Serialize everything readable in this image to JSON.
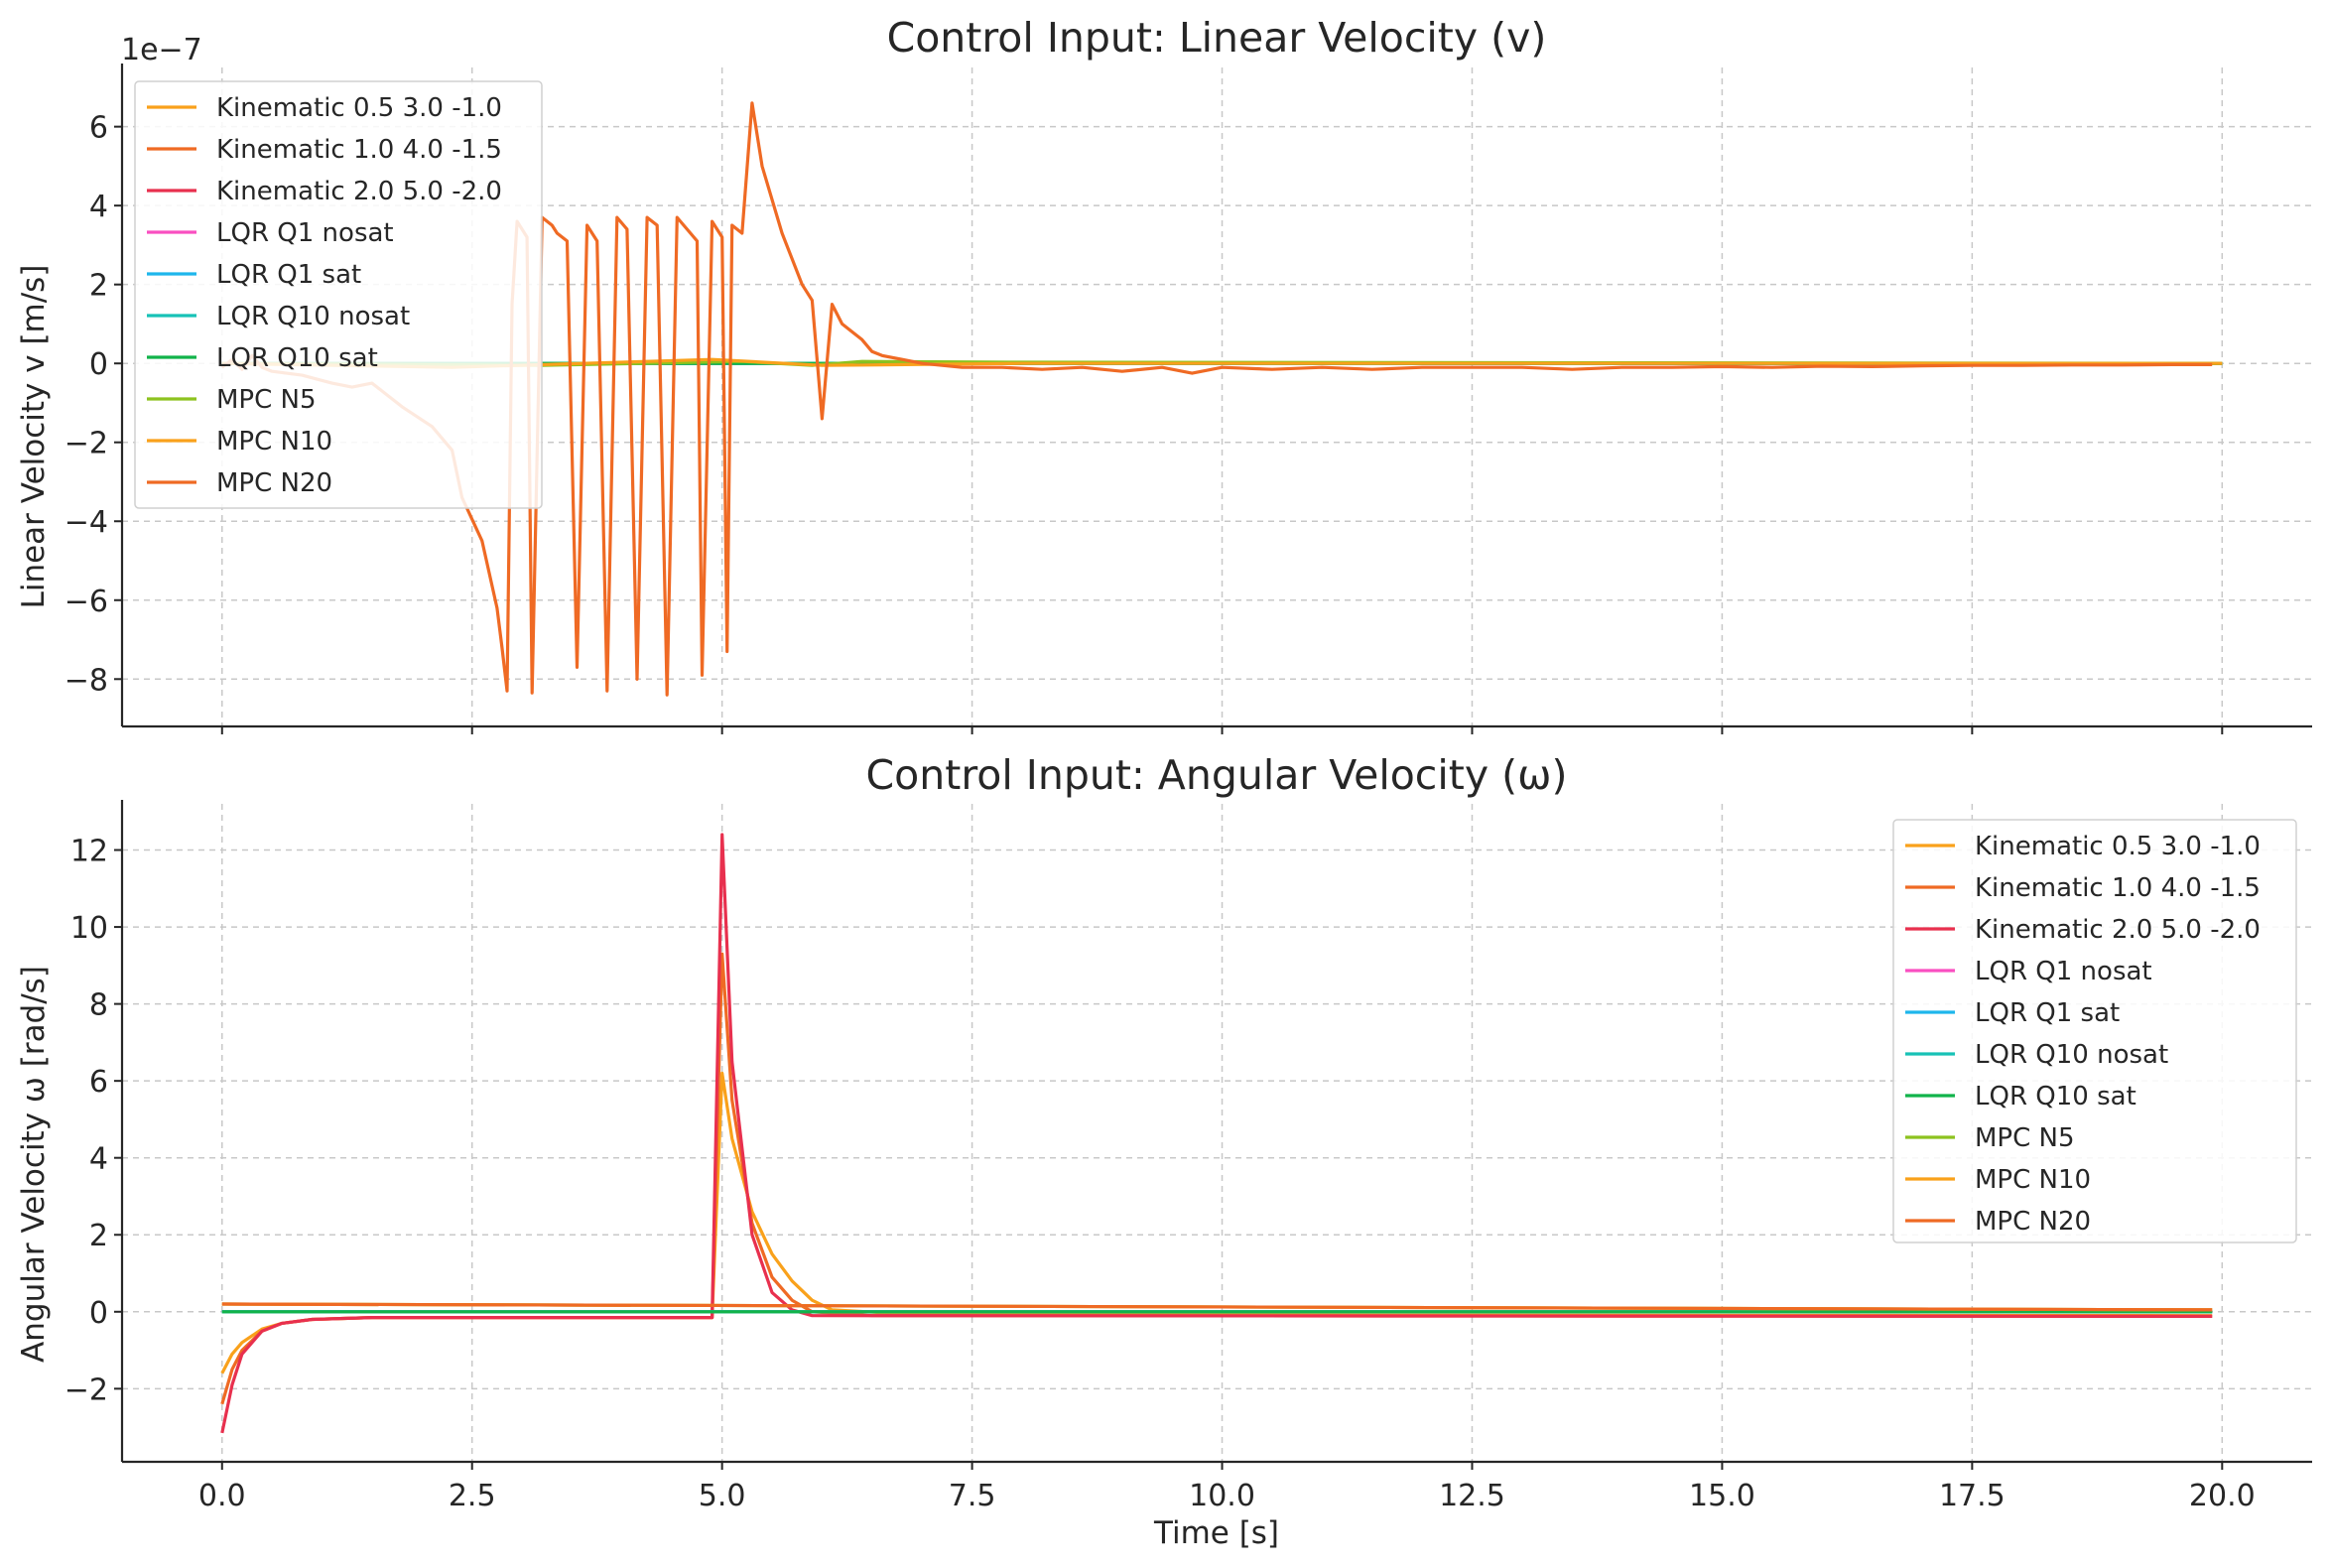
{
  "chart_data": [
    {
      "type": "line",
      "title": "Control Input: Linear Velocity (v)",
      "xlabel": "",
      "ylabel": "Linear Velocity v [m/s]",
      "y_offset_label": "1e−7",
      "xlim": [
        -1.0,
        20.9
      ],
      "ylim": [
        -9.2e-07,
        7.5e-07
      ],
      "xticks": [
        0.0,
        2.5,
        5.0,
        7.5,
        10.0,
        12.5,
        15.0,
        17.5,
        20.0
      ],
      "yticks": [
        -8,
        -6,
        -4,
        -2,
        0,
        2,
        4,
        6
      ],
      "ytick_labels": [
        "−8",
        "−6",
        "−4",
        "−2",
        "0",
        "2",
        "4",
        "6"
      ],
      "grid": true,
      "legend_placement": "upper-left",
      "series": [
        {
          "name": "Kinematic 0.5 3.0 -1.0",
          "color": "#F9A11B",
          "points": [
            [
              0,
              0
            ],
            [
              20,
              0
            ]
          ]
        },
        {
          "name": "Kinematic 1.0 4.0 -1.5",
          "color": "#EF6A24",
          "points": [
            [
              0,
              0
            ],
            [
              20,
              0
            ]
          ]
        },
        {
          "name": "Kinematic 2.0 5.0 -2.0",
          "color": "#E8304E",
          "points": [
            [
              0,
              0
            ],
            [
              20,
              0
            ]
          ]
        },
        {
          "name": "LQR Q1 nosat",
          "color": "#F94FC1",
          "points": [
            [
              0,
              0
            ],
            [
              20,
              0
            ]
          ]
        },
        {
          "name": "LQR Q1 sat",
          "color": "#1EB6EC",
          "points": [
            [
              0,
              0
            ],
            [
              20,
              0
            ]
          ]
        },
        {
          "name": "LQR Q10 nosat",
          "color": "#17C2B6",
          "points": [
            [
              0,
              0
            ],
            [
              20,
              0
            ]
          ]
        },
        {
          "name": "LQR Q10 sat",
          "color": "#12B34A",
          "points": [
            [
              0,
              0
            ],
            [
              20,
              0
            ]
          ]
        },
        {
          "name": "MPC N5",
          "color": "#8DC21F",
          "points": [
            [
              0,
              0
            ],
            [
              3.2,
              -5e-09
            ],
            [
              5.2,
              5e-09
            ],
            [
              5.9,
              -5e-09
            ],
            [
              6.4,
              5e-09
            ],
            [
              8.0,
              3e-09
            ],
            [
              20,
              0
            ]
          ]
        },
        {
          "name": "MPC N10",
          "color": "#F9A11B",
          "points": [
            [
              0,
              0
            ],
            [
              2.3,
              -1e-08
            ],
            [
              4.9,
              1e-08
            ],
            [
              6.0,
              -5e-09
            ],
            [
              8.0,
              0
            ],
            [
              20,
              0
            ]
          ]
        },
        {
          "name": "MPC N20",
          "color": "#EF6A24",
          "points": [
            [
              0.0,
              -1e-08
            ],
            [
              0.1,
              1e-08
            ],
            [
              0.2,
              -1.5e-08
            ],
            [
              0.3,
              2e-08
            ],
            [
              0.4,
              -1e-08
            ],
            [
              0.5,
              -2e-08
            ],
            [
              0.8,
              -3e-08
            ],
            [
              1.1,
              -5e-08
            ],
            [
              1.3,
              -6e-08
            ],
            [
              1.5,
              -5e-08
            ],
            [
              1.8,
              -1.1e-07
            ],
            [
              2.1,
              -1.6e-07
            ],
            [
              2.3,
              -2.2e-07
            ],
            [
              2.4,
              -3.4e-07
            ],
            [
              2.6,
              -4.5e-07
            ],
            [
              2.75,
              -6.2e-07
            ],
            [
              2.8,
              -7.2e-07
            ],
            [
              2.85,
              -8.3e-07
            ],
            [
              2.9,
              1.5e-07
            ],
            [
              2.95,
              3.6e-07
            ],
            [
              3.05,
              3.2e-07
            ],
            [
              3.1,
              -8.35e-07
            ],
            [
              3.2,
              3.7e-07
            ],
            [
              3.3,
              3.5e-07
            ],
            [
              3.35,
              3.3e-07
            ],
            [
              3.45,
              3.1e-07
            ],
            [
              3.55,
              -7.7e-07
            ],
            [
              3.65,
              3.5e-07
            ],
            [
              3.75,
              3.1e-07
            ],
            [
              3.85,
              -8.3e-07
            ],
            [
              3.95,
              3.7e-07
            ],
            [
              4.05,
              3.4e-07
            ],
            [
              4.15,
              -8e-07
            ],
            [
              4.25,
              3.7e-07
            ],
            [
              4.35,
              3.5e-07
            ],
            [
              4.45,
              -8.4e-07
            ],
            [
              4.55,
              3.7e-07
            ],
            [
              4.65,
              3.4e-07
            ],
            [
              4.75,
              3.1e-07
            ],
            [
              4.8,
              -7.9e-07
            ],
            [
              4.9,
              3.6e-07
            ],
            [
              5.0,
              3.2e-07
            ],
            [
              5.05,
              -7.3e-07
            ],
            [
              5.1,
              3.5e-07
            ],
            [
              5.2,
              3.3e-07
            ],
            [
              5.3,
              6.6e-07
            ],
            [
              5.4,
              5e-07
            ],
            [
              5.6,
              3.3e-07
            ],
            [
              5.8,
              2e-07
            ],
            [
              5.9,
              1.6e-07
            ],
            [
              6.0,
              -1.4e-07
            ],
            [
              6.1,
              1.5e-07
            ],
            [
              6.2,
              1e-07
            ],
            [
              6.3,
              8e-08
            ],
            [
              6.4,
              6e-08
            ],
            [
              6.5,
              3e-08
            ],
            [
              6.6,
              2e-08
            ],
            [
              6.8,
              1e-08
            ],
            [
              7.0,
              0
            ],
            [
              7.4,
              -1e-08
            ],
            [
              7.8,
              -1e-08
            ],
            [
              8.2,
              -1.5e-08
            ],
            [
              8.6,
              -1e-08
            ],
            [
              9.0,
              -2e-08
            ],
            [
              9.4,
              -1e-08
            ],
            [
              9.7,
              -2.5e-08
            ],
            [
              10.0,
              -1e-08
            ],
            [
              10.5,
              -1.5e-08
            ],
            [
              11.0,
              -1e-08
            ],
            [
              11.5,
              -1.5e-08
            ],
            [
              12.0,
              -1e-08
            ],
            [
              12.5,
              -1e-08
            ],
            [
              13.0,
              -1e-08
            ],
            [
              13.5,
              -1.5e-08
            ],
            [
              14.0,
              -1e-08
            ],
            [
              14.5,
              -1e-08
            ],
            [
              15.0,
              -8e-09
            ],
            [
              15.5,
              -1e-08
            ],
            [
              16.0,
              -7e-09
            ],
            [
              16.5,
              -8e-09
            ],
            [
              17.0,
              -6e-09
            ],
            [
              17.5,
              -5e-09
            ],
            [
              18.0,
              -5e-09
            ],
            [
              18.5,
              -4e-09
            ],
            [
              19.0,
              -4e-09
            ],
            [
              19.5,
              -3e-09
            ],
            [
              19.9,
              -3e-09
            ]
          ]
        }
      ]
    },
    {
      "type": "line",
      "title": "Control Input: Angular Velocity (ω)",
      "xlabel": "Time [s]",
      "ylabel": "Angular Velocity ω [rad/s]",
      "xlim": [
        -1.0,
        20.9
      ],
      "ylim": [
        -3.9,
        13.2
      ],
      "xticks": [
        0.0,
        2.5,
        5.0,
        7.5,
        10.0,
        12.5,
        15.0,
        17.5,
        20.0
      ],
      "xtick_labels": [
        "0.0",
        "2.5",
        "5.0",
        "7.5",
        "10.0",
        "12.5",
        "15.0",
        "17.5",
        "20.0"
      ],
      "yticks": [
        -2,
        0,
        2,
        4,
        6,
        8,
        10,
        12
      ],
      "ytick_labels": [
        "−2",
        "0",
        "2",
        "4",
        "6",
        "8",
        "10",
        "12"
      ],
      "grid": true,
      "legend_placement": "upper-right",
      "series": [
        {
          "name": "Kinematic 0.5 3.0 -1.0",
          "color": "#F9A11B",
          "points": [
            [
              0,
              -1.6
            ],
            [
              0.1,
              -1.1
            ],
            [
              0.2,
              -0.8
            ],
            [
              0.4,
              -0.45
            ],
            [
              0.6,
              -0.3
            ],
            [
              0.9,
              -0.2
            ],
            [
              1.5,
              -0.15
            ],
            [
              4.9,
              -0.15
            ],
            [
              5.0,
              6.2
            ],
            [
              5.1,
              4.5
            ],
            [
              5.3,
              2.6
            ],
            [
              5.5,
              1.5
            ],
            [
              5.7,
              0.8
            ],
            [
              5.9,
              0.3
            ],
            [
              6.1,
              0.05
            ],
            [
              7.0,
              -0.08
            ],
            [
              19.9,
              -0.1
            ]
          ]
        },
        {
          "name": "Kinematic 1.0 4.0 -1.5",
          "color": "#EF6A24",
          "points": [
            [
              0,
              -2.4
            ],
            [
              0.1,
              -1.5
            ],
            [
              0.2,
              -1.0
            ],
            [
              0.4,
              -0.5
            ],
            [
              0.6,
              -0.3
            ],
            [
              0.9,
              -0.2
            ],
            [
              1.5,
              -0.15
            ],
            [
              4.9,
              -0.15
            ],
            [
              5.0,
              9.3
            ],
            [
              5.1,
              5.5
            ],
            [
              5.3,
              2.3
            ],
            [
              5.5,
              0.9
            ],
            [
              5.7,
              0.3
            ],
            [
              5.9,
              0.0
            ],
            [
              6.5,
              -0.1
            ],
            [
              19.9,
              -0.12
            ]
          ]
        },
        {
          "name": "Kinematic 2.0 5.0 -2.0",
          "color": "#E8304E",
          "points": [
            [
              0,
              -3.15
            ],
            [
              0.1,
              -1.9
            ],
            [
              0.2,
              -1.1
            ],
            [
              0.4,
              -0.5
            ],
            [
              0.6,
              -0.3
            ],
            [
              0.9,
              -0.2
            ],
            [
              1.5,
              -0.15
            ],
            [
              4.9,
              -0.15
            ],
            [
              5.0,
              12.4
            ],
            [
              5.1,
              6.5
            ],
            [
              5.3,
              2.0
            ],
            [
              5.5,
              0.5
            ],
            [
              5.7,
              0.05
            ],
            [
              5.9,
              -0.1
            ],
            [
              19.9,
              -0.12
            ]
          ]
        },
        {
          "name": "LQR Q1 nosat",
          "color": "#F94FC1",
          "points": [
            [
              0,
              0
            ],
            [
              19.9,
              0
            ]
          ]
        },
        {
          "name": "LQR Q1 sat",
          "color": "#1EB6EC",
          "points": [
            [
              0,
              0
            ],
            [
              19.9,
              0
            ]
          ]
        },
        {
          "name": "LQR Q10 nosat",
          "color": "#17C2B6",
          "points": [
            [
              0,
              0
            ],
            [
              19.9,
              0
            ]
          ]
        },
        {
          "name": "LQR Q10 sat",
          "color": "#12B34A",
          "points": [
            [
              0,
              0
            ],
            [
              19.9,
              0
            ]
          ]
        },
        {
          "name": "MPC N5",
          "color": "#8DC21F",
          "points": [
            [
              0,
              0.2
            ],
            [
              19.9,
              0.05
            ]
          ]
        },
        {
          "name": "MPC N10",
          "color": "#F9A11B",
          "points": [
            [
              0,
              0.2
            ],
            [
              19.9,
              0.05
            ]
          ]
        },
        {
          "name": "MPC N20",
          "color": "#EF6A24",
          "points": [
            [
              0,
              0.2
            ],
            [
              19.9,
              0.05
            ]
          ]
        }
      ]
    }
  ]
}
